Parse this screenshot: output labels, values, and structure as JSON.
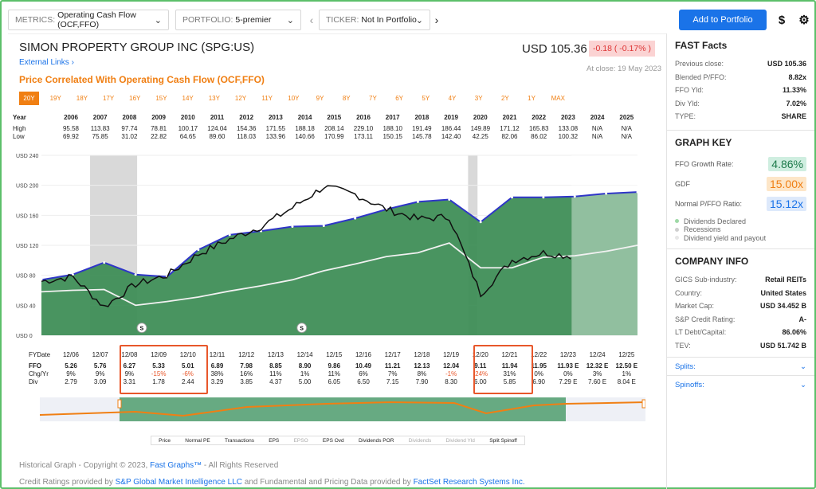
{
  "toolbar": {
    "metrics_label": "METRICS:",
    "metrics_value": "Operating Cash Flow (OCF,FFO)",
    "portfolio_label": "PORTFOLIO:",
    "portfolio_value": "5-premier",
    "ticker_label": "TICKER:",
    "ticker_value": "Not In Portfolio",
    "add_label": "Add to Portfolio",
    "dollar_icon": "dollar-icon",
    "gear_icon": "gear-icon"
  },
  "header": {
    "company": "SIMON PROPERTY GROUP INC",
    "ticker": "(SPG:US)",
    "external_links": "External Links",
    "price": "USD 105.36",
    "change": "-0.18 ( -0.17% )",
    "close_date": "At close: 19 May 2023",
    "subtitle": "Price Correlated With Operating Cash Flow (OCF,FFO)"
  },
  "periods": [
    "20Y",
    "19Y",
    "18Y",
    "17Y",
    "16Y",
    "15Y",
    "14Y",
    "13Y",
    "12Y",
    "11Y",
    "10Y",
    "9Y",
    "8Y",
    "7Y",
    "6Y",
    "5Y",
    "4Y",
    "3Y",
    "2Y",
    "1Y",
    "MAX"
  ],
  "active_period": "20Y",
  "hilo": {
    "row_labels": [
      "Year",
      "High",
      "Low"
    ],
    "years": [
      "2006",
      "2007",
      "2008",
      "2009",
      "2010",
      "2011",
      "2012",
      "2013",
      "2014",
      "2015",
      "2016",
      "2017",
      "2018",
      "2019",
      "2020",
      "2021",
      "2022",
      "2023",
      "2024",
      "2025"
    ],
    "high": [
      "95.58",
      "113.83",
      "97.74",
      "78.81",
      "100.17",
      "124.04",
      "154.36",
      "171.55",
      "188.18",
      "208.14",
      "229.10",
      "188.10",
      "191.49",
      "186.44",
      "149.89",
      "171.12",
      "165.83",
      "133.08",
      "N/A",
      "N/A"
    ],
    "low": [
      "69.92",
      "75.85",
      "31.02",
      "22.82",
      "64.65",
      "89.60",
      "118.03",
      "133.96",
      "140.66",
      "170.99",
      "173.11",
      "150.15",
      "145.78",
      "142.40",
      "42.25",
      "82.06",
      "86.02",
      "100.32",
      "N/A",
      "N/A"
    ]
  },
  "chart_data": {
    "type": "area",
    "ylabel": "",
    "yticks": [
      "USD 240",
      "USD 200",
      "USD 160",
      "USD 120",
      "USD 80",
      "USD 40",
      "USD 0"
    ],
    "ylim": [
      0,
      240
    ],
    "x": [
      "12/06",
      "12/07",
      "12/08",
      "12/09",
      "12/10",
      "12/11",
      "12/12",
      "12/13",
      "12/14",
      "12/15",
      "12/16",
      "12/17",
      "12/18",
      "12/19",
      "12/20",
      "12/21",
      "12/22",
      "12/23",
      "12/24",
      "12/25"
    ],
    "series": [
      {
        "name": "Normal PE",
        "values": [
          74,
          81,
          97,
          81,
          78,
          114,
          134,
          139,
          145,
          146,
          156,
          168,
          178,
          181,
          151,
          184,
          184,
          185,
          189,
          191
        ]
      },
      {
        "name": "Price",
        "values": [
          72,
          78,
          38,
          68,
          80,
          108,
          128,
          145,
          170,
          198,
          188,
          168,
          155,
          158,
          55,
          100,
          110,
          105,
          null,
          null
        ]
      },
      {
        "name": "Dividend yield",
        "values": [
          58,
          60,
          61,
          40,
          45,
          51,
          59,
          66,
          74,
          86,
          95,
          105,
          110,
          123,
          90,
          90,
          104,
          106,
          112,
          120
        ]
      }
    ],
    "recessions": [
      [
        "12/07",
        "06/09"
      ],
      [
        "02/20",
        "04/20"
      ]
    ],
    "markers": [
      "S",
      "S"
    ]
  },
  "bottom": {
    "row_labels": [
      "FYDate",
      "FFO",
      "Chg/Yr",
      "Div"
    ],
    "fydate": [
      "12/06",
      "12/07",
      "12/08",
      "12/09",
      "12/10",
      "12/11",
      "12/12",
      "12/13",
      "12/14",
      "12/15",
      "12/16",
      "12/17",
      "12/18",
      "12/19",
      "12/20",
      "12/21",
      "12/22",
      "12/23",
      "12/24",
      "12/25"
    ],
    "ffo": [
      "5.26",
      "5.76",
      "6.27",
      "5.33",
      "5.01",
      "6.89",
      "7.98",
      "8.85",
      "8.90",
      "9.86",
      "10.49",
      "11.21",
      "12.13",
      "12.04",
      "9.11",
      "11.94",
      "11.95",
      "11.93 E",
      "12.32 E",
      "12.50 E"
    ],
    "chg": [
      "9%",
      "9%",
      "9%",
      "-15%",
      "-6%",
      "38%",
      "16%",
      "11%",
      "1%",
      "11%",
      "6%",
      "7%",
      "8%",
      "-1%",
      "-24%",
      "31%",
      "0%",
      "0%",
      "3%",
      "1%"
    ],
    "div": [
      "2.79",
      "3.09",
      "3.31",
      "1.78",
      "2.44",
      "3.29",
      "3.85",
      "4.37",
      "5.00",
      "6.05",
      "6.50",
      "7.15",
      "7.90",
      "8.30",
      "6.00",
      "5.85",
      "6.90",
      "7.29 E",
      "7.60 E",
      "8.04 E"
    ]
  },
  "legend": [
    "Price",
    "Normal PE",
    "Transactions",
    "EPS",
    "EPSO",
    "EPS Ovd",
    "Dividends POR",
    "Dividends",
    "Dividend Yld",
    "Split Spinoff"
  ],
  "footer": {
    "copyright_prefix": "Historical Graph - Copyright © 2023,",
    "copyright_link": "Fast Graphs™",
    "copyright_suffix": "- All Rights Reserved",
    "credit_prefix": "Credit Ratings provided by",
    "credit_link1": "S&P Global Market Intelligence LLC",
    "credit_mid": "and Fundamental and Pricing Data provided by",
    "credit_link2": "FactSet Research Systems Inc."
  },
  "fast_facts": {
    "title": "FAST Facts",
    "rows": [
      [
        "Previous close:",
        "USD 105.36"
      ],
      [
        "Blended P/FFO:",
        "8.82x"
      ],
      [
        "FFO Yld:",
        "11.33%"
      ],
      [
        "Div Yld:",
        "7.02%"
      ],
      [
        "TYPE:",
        "SHARE"
      ]
    ]
  },
  "graph_key": {
    "title": "GRAPH KEY",
    "growth_label": "FFO Growth Rate:",
    "growth_value": "4.86%",
    "gdf_label": "GDF",
    "gdf_value": "15.00x",
    "normal_label": "Normal P/FFO Ratio:",
    "normal_value": "15.12x",
    "dots": [
      "Dividends Declared",
      "Recessions",
      "Dividend yield and payout"
    ]
  },
  "company_info": {
    "title": "COMPANY INFO",
    "rows": [
      [
        "GICS Sub-industry:",
        "Retail REITs"
      ],
      [
        "Country:",
        "United States"
      ],
      [
        "Market Cap:",
        "USD 34.452 B"
      ],
      [
        "S&P Credit Rating:",
        "A-"
      ],
      [
        "LT Debt/Capital:",
        "86.06%"
      ],
      [
        "TEV:",
        "USD 51.742 B"
      ]
    ],
    "splits": "Splits:",
    "spinoffs": "Spinoffs:"
  },
  "colors": {
    "accent": "#f07f13",
    "brand": "#1a73e8",
    "area": "#3f8e57",
    "normal_pe": "#2f35c8",
    "red": "#e8572b"
  }
}
